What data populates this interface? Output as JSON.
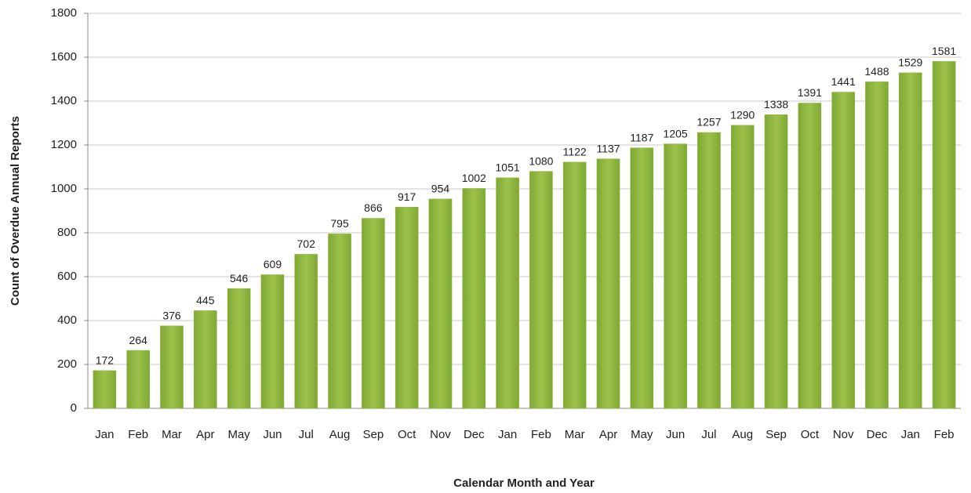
{
  "chart_data": {
    "type": "bar",
    "xlabel": "Calendar Month and Year",
    "ylabel": "Count of Overdue Annual Reports",
    "categories": [
      "Jan",
      "Feb",
      "Mar",
      "Apr",
      "May",
      "Jun",
      "Jul",
      "Aug",
      "Sep",
      "Oct",
      "Nov",
      "Dec",
      "Jan",
      "Feb",
      "Mar",
      "Apr",
      "May",
      "Jun",
      "Jul",
      "Aug",
      "Sep",
      "Oct",
      "Nov",
      "Dec",
      "Jan",
      "Feb"
    ],
    "values": [
      172,
      264,
      376,
      445,
      546,
      609,
      702,
      795,
      866,
      917,
      954,
      1002,
      1051,
      1080,
      1122,
      1137,
      1187,
      1205,
      1257,
      1290,
      1338,
      1391,
      1441,
      1488,
      1529,
      1581
    ],
    "color": "#8db53c",
    "ylim": [
      0,
      1800
    ],
    "yticks": [
      0,
      200,
      400,
      600,
      800,
      1000,
      1200,
      1400,
      1600,
      1800
    ],
    "grid": true
  }
}
